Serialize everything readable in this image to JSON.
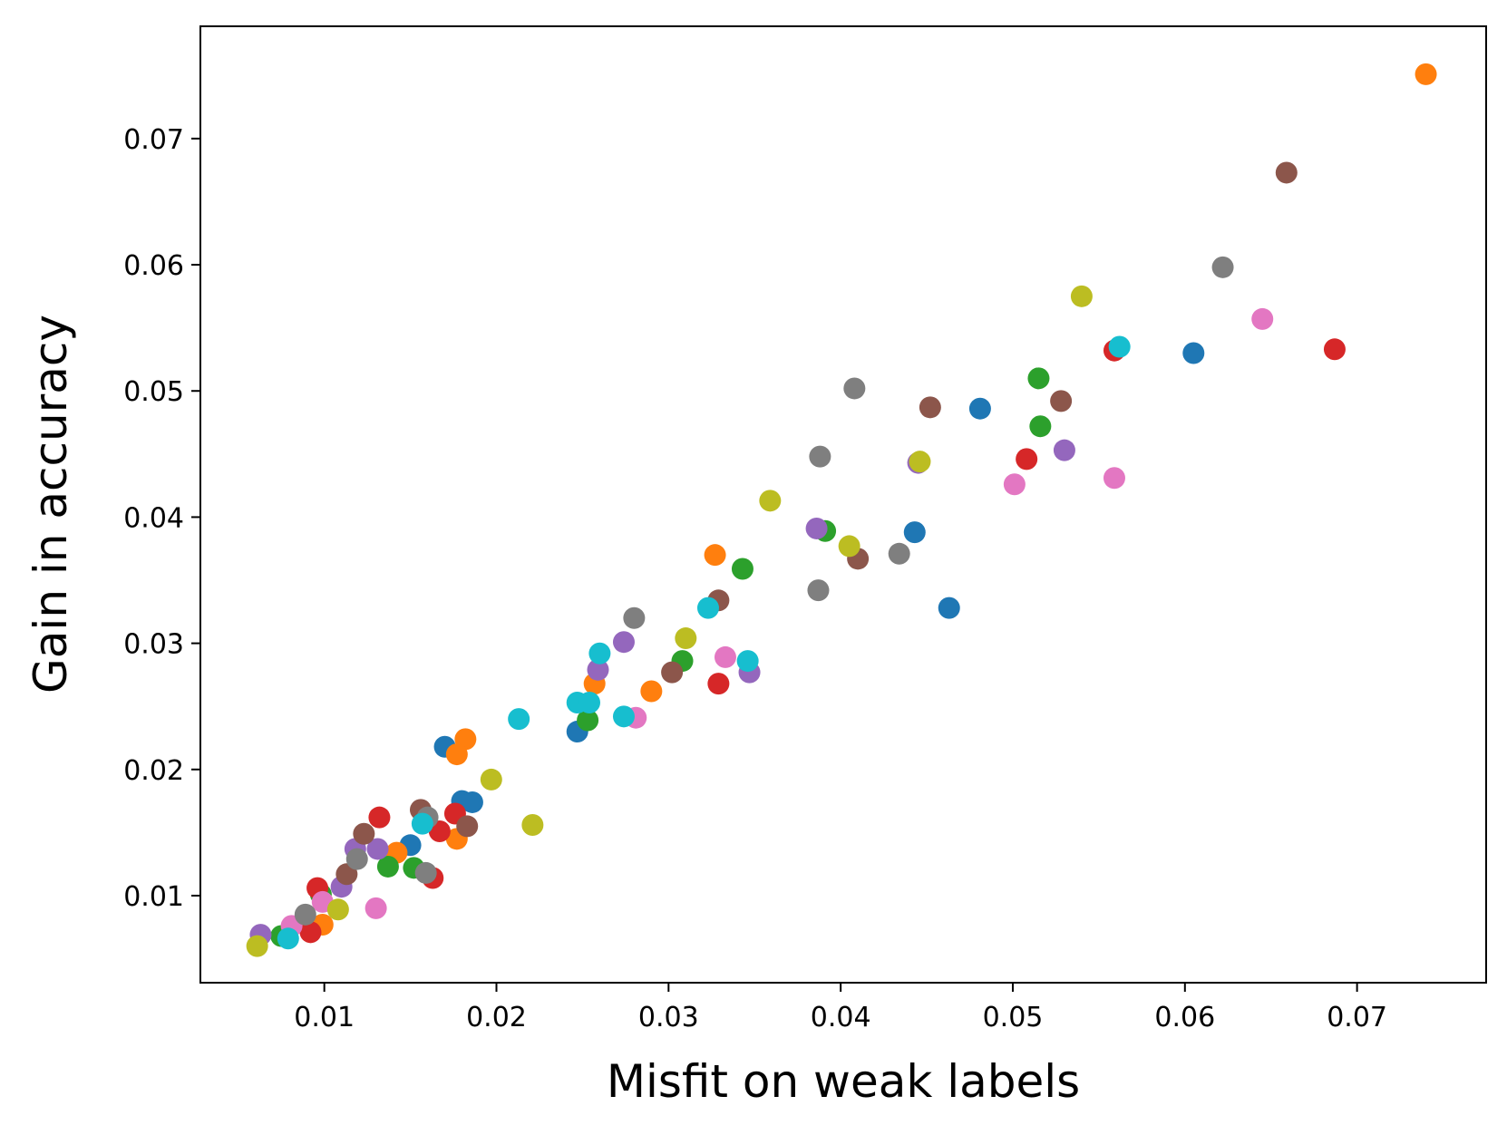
{
  "chart_data": {
    "type": "scatter",
    "xlabel": "Misfit on weak labels",
    "ylabel": "Gain in accuracy",
    "xlim": [
      0.0028,
      0.0775
    ],
    "ylim": [
      0.0031,
      0.0789
    ],
    "xticks": [
      0.01,
      0.02,
      0.03,
      0.04,
      0.05,
      0.06,
      0.07
    ],
    "yticks": [
      0.01,
      0.02,
      0.03,
      0.04,
      0.05,
      0.06,
      0.07
    ],
    "xtick_labels": [
      "0.01",
      "0.02",
      "0.03",
      "0.04",
      "0.05",
      "0.06",
      "0.07"
    ],
    "ytick_labels": [
      "0.01",
      "0.02",
      "0.03",
      "0.04",
      "0.05",
      "0.06",
      "0.07"
    ],
    "grid": false,
    "legend": "none",
    "series": [
      {
        "color": "#1f77b4",
        "x": [
          0.017,
          0.018,
          0.0186,
          0.015,
          0.0247,
          0.0443,
          0.0463,
          0.0481,
          0.0605
        ],
        "y": [
          0.0218,
          0.0175,
          0.0174,
          0.014,
          0.023,
          0.0388,
          0.0328,
          0.0486,
          0.053
        ]
      },
      {
        "color": "#ff7f0e",
        "x": [
          0.074,
          0.0182,
          0.0177,
          0.0177,
          0.0142,
          0.0099,
          0.0257,
          0.029,
          0.0327
        ],
        "y": [
          0.0751,
          0.0224,
          0.0212,
          0.0145,
          0.0134,
          0.0077,
          0.0268,
          0.0262,
          0.037
        ]
      },
      {
        "color": "#2ca02c",
        "x": [
          0.0098,
          0.0075,
          0.0137,
          0.0152,
          0.0253,
          0.0308,
          0.0343,
          0.0391,
          0.0515,
          0.0516
        ],
        "y": [
          0.0101,
          0.0068,
          0.0123,
          0.0122,
          0.0239,
          0.0286,
          0.0359,
          0.0389,
          0.051,
          0.0472
        ]
      },
      {
        "color": "#d62728",
        "x": [
          0.0096,
          0.0092,
          0.0132,
          0.0163,
          0.0167,
          0.0176,
          0.0329,
          0.0508,
          0.0559,
          0.0687
        ],
        "y": [
          0.0106,
          0.0071,
          0.0162,
          0.0114,
          0.0151,
          0.0165,
          0.0268,
          0.0446,
          0.0532,
          0.0533
        ]
      },
      {
        "color": "#9467bd",
        "x": [
          0.0063,
          0.011,
          0.0118,
          0.0131,
          0.0259,
          0.0274,
          0.0347,
          0.0386,
          0.0445,
          0.053
        ],
        "y": [
          0.0069,
          0.0107,
          0.0137,
          0.0137,
          0.0279,
          0.0301,
          0.0277,
          0.0391,
          0.0443,
          0.0453
        ]
      },
      {
        "color": "#8c564b",
        "x": [
          0.0113,
          0.0123,
          0.0156,
          0.0183,
          0.0302,
          0.0329,
          0.041,
          0.0452,
          0.0528,
          0.0659
        ],
        "y": [
          0.0117,
          0.0149,
          0.0168,
          0.0155,
          0.0277,
          0.0334,
          0.0367,
          0.0487,
          0.0492,
          0.0673
        ]
      },
      {
        "color": "#e377c2",
        "x": [
          0.0081,
          0.0099,
          0.013,
          0.0281,
          0.0333,
          0.0501,
          0.0559,
          0.0645
        ],
        "y": [
          0.0076,
          0.0095,
          0.009,
          0.0241,
          0.0289,
          0.0426,
          0.0431,
          0.0557
        ]
      },
      {
        "color": "#7f7f7f",
        "x": [
          0.0089,
          0.0119,
          0.016,
          0.0159,
          0.028,
          0.0387,
          0.0388,
          0.0408,
          0.0434,
          0.0622
        ],
        "y": [
          0.0085,
          0.0129,
          0.0162,
          0.0118,
          0.032,
          0.0342,
          0.0448,
          0.0502,
          0.0371,
          0.0598
        ]
      },
      {
        "color": "#bcbd22",
        "x": [
          0.0061,
          0.0108,
          0.0197,
          0.0221,
          0.031,
          0.0359,
          0.0405,
          0.0446,
          0.054
        ],
        "y": [
          0.006,
          0.0089,
          0.0192,
          0.0156,
          0.0304,
          0.0413,
          0.0377,
          0.0444,
          0.0575
        ]
      },
      {
        "color": "#17becf",
        "x": [
          0.0079,
          0.0157,
          0.0213,
          0.0247,
          0.0254,
          0.026,
          0.0274,
          0.0323,
          0.0346,
          0.0562
        ],
        "y": [
          0.0066,
          0.0157,
          0.024,
          0.0253,
          0.0253,
          0.0292,
          0.0242,
          0.0328,
          0.0286,
          0.0535
        ]
      }
    ]
  }
}
